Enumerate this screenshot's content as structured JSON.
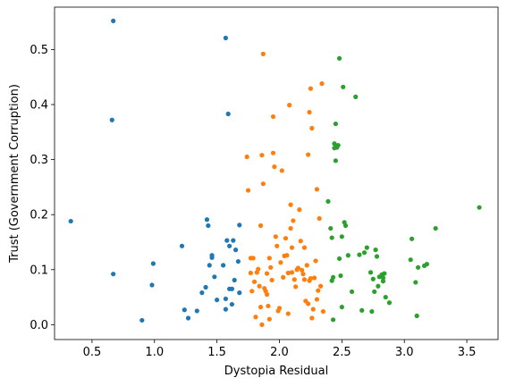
{
  "chart_data": {
    "type": "scatter",
    "title": "",
    "xlabel": "Dystopia Residual",
    "ylabel": "Trust (Government Corruption)",
    "xlim": [
      0.2,
      3.75
    ],
    "ylim": [
      -0.027,
      0.577
    ],
    "xticks": [
      0.5,
      1.0,
      1.5,
      2.0,
      2.5,
      3.0,
      3.5
    ],
    "yticks": [
      0.0,
      0.1,
      0.2,
      0.3,
      0.4,
      0.5
    ],
    "grid": false,
    "legend": "none",
    "series": [
      {
        "color": "#1f77b4",
        "points": [
          [
            0.33,
            0.188
          ],
          [
            0.66,
            0.372
          ],
          [
            0.67,
            0.552
          ],
          [
            0.67,
            0.092
          ],
          [
            0.9,
            0.008
          ],
          [
            0.98,
            0.072
          ],
          [
            0.99,
            0.111
          ],
          [
            1.22,
            0.143
          ],
          [
            1.24,
            0.027
          ],
          [
            1.27,
            0.012
          ],
          [
            1.34,
            0.025
          ],
          [
            1.38,
            0.058
          ],
          [
            1.41,
            0.068
          ],
          [
            1.42,
            0.191
          ],
          [
            1.43,
            0.18
          ],
          [
            1.44,
            0.108
          ],
          [
            1.46,
            0.126
          ],
          [
            1.46,
            0.122
          ],
          [
            1.48,
            0.087
          ],
          [
            1.5,
            0.045
          ],
          [
            1.55,
            0.108
          ],
          [
            1.57,
            0.521
          ],
          [
            1.57,
            0.028
          ],
          [
            1.57,
            0.047
          ],
          [
            1.58,
            0.153
          ],
          [
            1.59,
            0.383
          ],
          [
            1.6,
            0.065
          ],
          [
            1.6,
            0.143
          ],
          [
            1.62,
            0.037
          ],
          [
            1.62,
            0.065
          ],
          [
            1.63,
            0.153
          ],
          [
            1.64,
            0.081
          ],
          [
            1.65,
            0.136
          ],
          [
            1.67,
            0.115
          ],
          [
            1.68,
            0.181
          ],
          [
            1.68,
            0.058
          ]
        ]
      },
      {
        "color": "#ff7f0e",
        "points": [
          [
            1.74,
            0.305
          ],
          [
            1.75,
            0.244
          ],
          [
            1.77,
            0.121
          ],
          [
            1.77,
            0.094
          ],
          [
            1.78,
            0.061
          ],
          [
            1.79,
            0.121
          ],
          [
            1.8,
            0.078
          ],
          [
            1.81,
            0.014
          ],
          [
            1.82,
            0.095
          ],
          [
            1.83,
            0.101
          ],
          [
            1.84,
            0.07
          ],
          [
            1.85,
            0.18
          ],
          [
            1.85,
            0.032
          ],
          [
            1.86,
            0.308
          ],
          [
            1.86,
            0.0
          ],
          [
            1.87,
            0.492
          ],
          [
            1.87,
            0.256
          ],
          [
            1.88,
            0.066
          ],
          [
            1.89,
            0.061
          ],
          [
            1.9,
            0.093
          ],
          [
            1.9,
            0.055
          ],
          [
            1.91,
            0.034
          ],
          [
            1.92,
            0.121
          ],
          [
            1.92,
            0.01
          ],
          [
            1.93,
            0.104
          ],
          [
            1.94,
            0.081
          ],
          [
            1.95,
            0.378
          ],
          [
            1.95,
            0.312
          ],
          [
            1.96,
            0.287
          ],
          [
            1.97,
            0.16
          ],
          [
            1.98,
            0.143
          ],
          [
            1.99,
            0.025
          ],
          [
            2.0,
            0.03
          ],
          [
            2.01,
            0.113
          ],
          [
            2.02,
            0.28
          ],
          [
            2.03,
            0.086
          ],
          [
            2.04,
            0.125
          ],
          [
            2.05,
            0.157
          ],
          [
            2.06,
            0.126
          ],
          [
            2.07,
            0.02
          ],
          [
            2.07,
            0.094
          ],
          [
            2.08,
            0.399
          ],
          [
            2.09,
            0.175
          ],
          [
            2.09,
            0.218
          ],
          [
            2.1,
            0.14
          ],
          [
            2.1,
            0.095
          ],
          [
            2.11,
            0.189
          ],
          [
            2.12,
            0.082
          ],
          [
            2.13,
            0.069
          ],
          [
            2.14,
            0.1
          ],
          [
            2.15,
            0.103
          ],
          [
            2.16,
            0.209
          ],
          [
            2.17,
            0.152
          ],
          [
            2.18,
            0.099
          ],
          [
            2.19,
            0.092
          ],
          [
            2.2,
            0.14
          ],
          [
            2.2,
            0.082
          ],
          [
            2.21,
            0.043
          ],
          [
            2.22,
            0.108
          ],
          [
            2.23,
            0.309
          ],
          [
            2.23,
            0.038
          ],
          [
            2.24,
            0.386
          ],
          [
            2.24,
            0.08
          ],
          [
            2.25,
            0.084
          ],
          [
            2.25,
            0.429
          ],
          [
            2.26,
            0.357
          ],
          [
            2.26,
            0.012
          ],
          [
            2.27,
            0.028
          ],
          [
            2.28,
            0.085
          ],
          [
            2.29,
            0.116
          ],
          [
            2.3,
            0.246
          ],
          [
            2.3,
            0.046
          ],
          [
            2.31,
            0.062
          ],
          [
            2.32,
            0.193
          ],
          [
            2.33,
            0.07
          ],
          [
            2.34,
            0.438
          ],
          [
            2.35,
            0.024
          ]
        ]
      },
      {
        "color": "#2ca02c",
        "points": [
          [
            2.39,
            0.224
          ],
          [
            2.41,
            0.175
          ],
          [
            2.42,
            0.158
          ],
          [
            2.42,
            0.08
          ],
          [
            2.43,
            0.009
          ],
          [
            2.43,
            0.086
          ],
          [
            2.44,
            0.321
          ],
          [
            2.44,
            0.329
          ],
          [
            2.45,
            0.365
          ],
          [
            2.45,
            0.298
          ],
          [
            2.46,
            0.324
          ],
          [
            2.46,
            0.322
          ],
          [
            2.47,
            0.326
          ],
          [
            2.48,
            0.484
          ],
          [
            2.48,
            0.12
          ],
          [
            2.49,
            0.089
          ],
          [
            2.5,
            0.16
          ],
          [
            2.5,
            0.032
          ],
          [
            2.51,
            0.432
          ],
          [
            2.52,
            0.186
          ],
          [
            2.53,
            0.18
          ],
          [
            2.55,
            0.126
          ],
          [
            2.58,
            0.06
          ],
          [
            2.61,
            0.414
          ],
          [
            2.64,
            0.127
          ],
          [
            2.66,
            0.026
          ],
          [
            2.68,
            0.131
          ],
          [
            2.7,
            0.14
          ],
          [
            2.73,
            0.095
          ],
          [
            2.74,
            0.024
          ],
          [
            2.75,
            0.083
          ],
          [
            2.76,
            0.06
          ],
          [
            2.77,
            0.136
          ],
          [
            2.78,
            0.124
          ],
          [
            2.79,
            0.07
          ],
          [
            2.8,
            0.087
          ],
          [
            2.82,
            0.091
          ],
          [
            2.83,
            0.079
          ],
          [
            2.83,
            0.085
          ],
          [
            2.84,
            0.093
          ],
          [
            2.85,
            0.05
          ],
          [
            2.88,
            0.04
          ],
          [
            3.05,
            0.118
          ],
          [
            3.06,
            0.156
          ],
          [
            3.09,
            0.077
          ],
          [
            3.1,
            0.016
          ],
          [
            3.11,
            0.104
          ],
          [
            3.16,
            0.107
          ],
          [
            3.18,
            0.11
          ],
          [
            3.25,
            0.175
          ],
          [
            3.6,
            0.213
          ]
        ]
      }
    ]
  }
}
